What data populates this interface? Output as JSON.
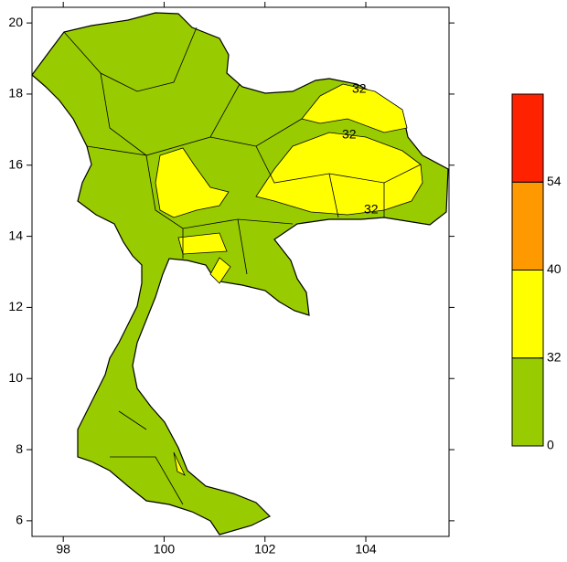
{
  "map": {
    "xlim": [
      97.38,
      105.65
    ],
    "xticks": [
      98,
      100,
      102,
      104
    ],
    "ylim": [
      5.56,
      20.44
    ],
    "yticks": [
      6,
      8,
      10,
      12,
      14,
      16,
      18,
      20
    ],
    "contour_labels": [
      "32",
      "32",
      "32"
    ],
    "colorbar": {
      "levels": [
        0,
        32,
        40,
        54
      ],
      "colors": [
        "#99cc00",
        "#ffff00",
        "#ff9900",
        "#ff2200"
      ]
    }
  }
}
